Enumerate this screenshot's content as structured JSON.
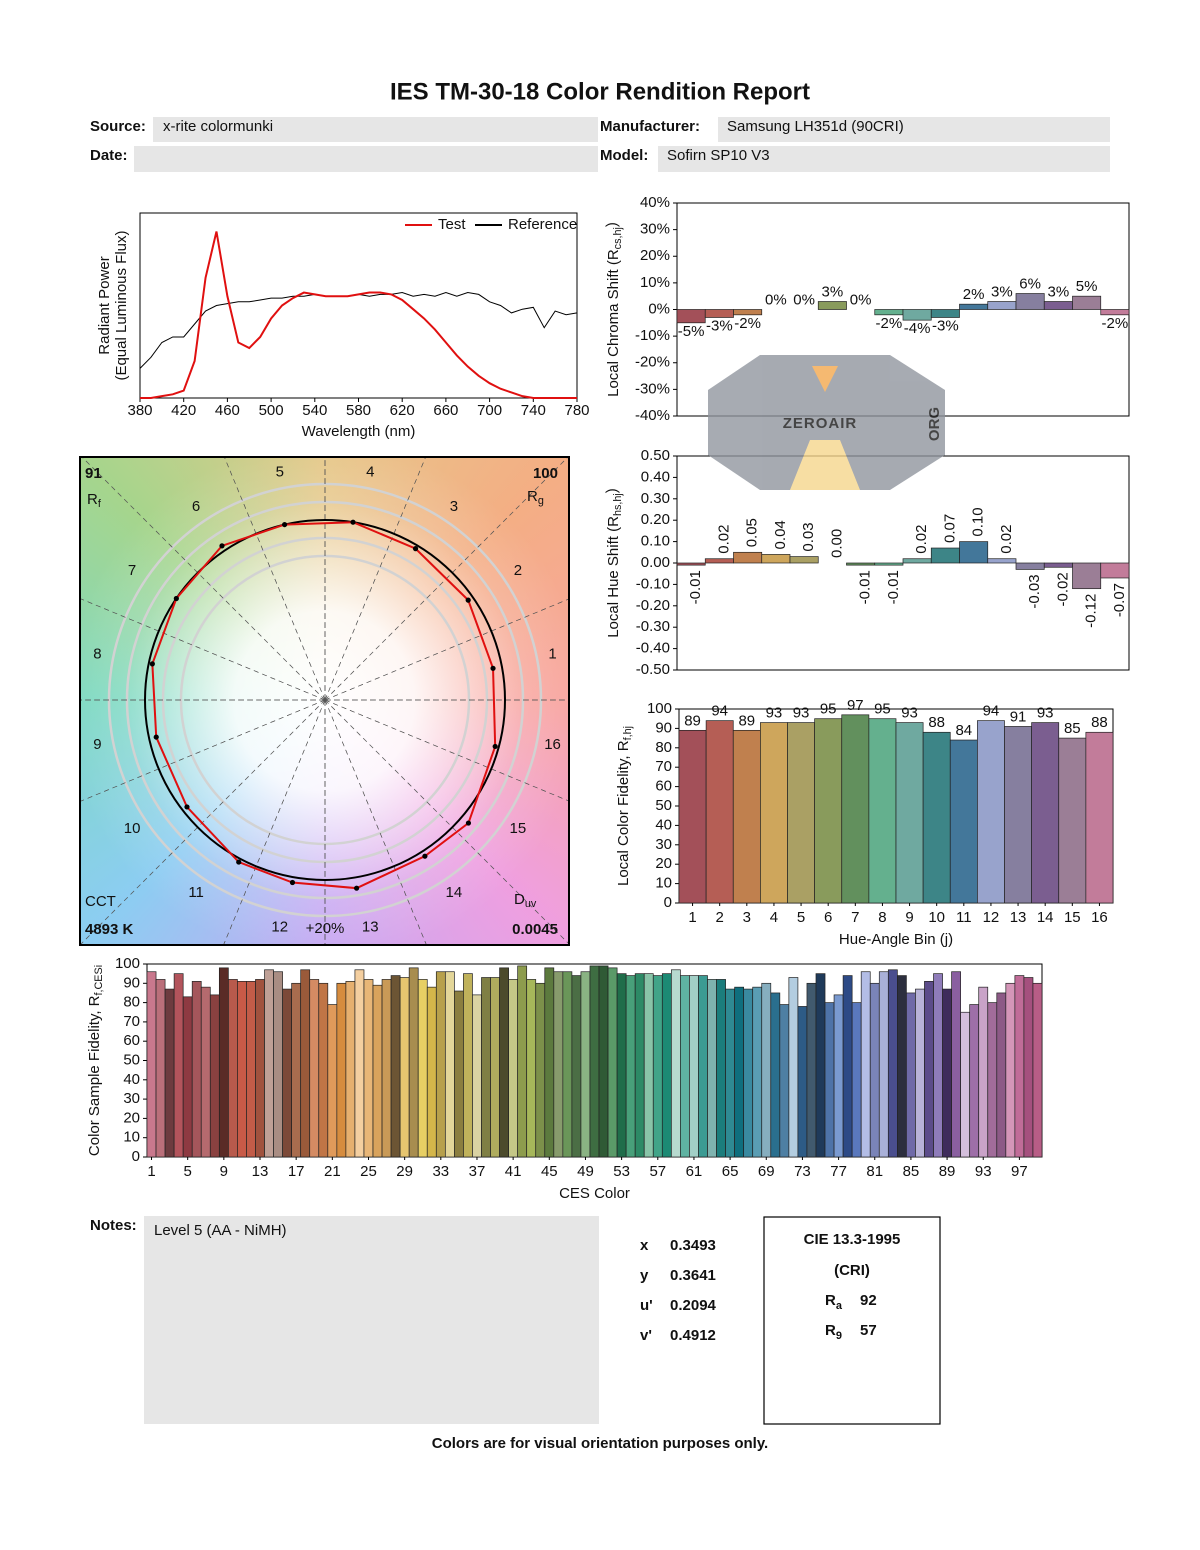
{
  "title": "IES TM-30-18 Color Rendition Report",
  "fields": {
    "source_label": "Source:",
    "source": "x-rite colormunki",
    "manufacturer_label": "Manufacturer:",
    "manufacturer": "Samsung LH351d (90CRI)",
    "date_label": "Date:",
    "model_label": "Model:",
    "model": "Sofirn SP10 V3"
  },
  "chart_data": [
    {
      "type": "line",
      "x": [
        380,
        390,
        400,
        410,
        420,
        430,
        440,
        450,
        460,
        470,
        480,
        490,
        500,
        510,
        520,
        530,
        540,
        550,
        560,
        570,
        580,
        590,
        600,
        610,
        620,
        630,
        640,
        650,
        660,
        670,
        680,
        690,
        700,
        710,
        720,
        730,
        740,
        750,
        760,
        770,
        780
      ],
      "series": [
        {
          "name": "Test",
          "color": "#e01010",
          "values": [
            0,
            0,
            0.01,
            0.02,
            0.04,
            0.2,
            0.65,
            0.9,
            0.55,
            0.3,
            0.27,
            0.33,
            0.43,
            0.5,
            0.54,
            0.57,
            0.56,
            0.55,
            0.55,
            0.55,
            0.56,
            0.57,
            0.57,
            0.56,
            0.53,
            0.48,
            0.43,
            0.37,
            0.3,
            0.23,
            0.17,
            0.12,
            0.08,
            0.05,
            0.03,
            0.01,
            0,
            0,
            0,
            0,
            0
          ]
        },
        {
          "name": "Reference",
          "color": "#000000",
          "values": [
            0.16,
            0.22,
            0.3,
            0.33,
            0.33,
            0.4,
            0.47,
            0.5,
            0.51,
            0.52,
            0.52,
            0.53,
            0.54,
            0.54,
            0.55,
            0.55,
            0.56,
            0.55,
            0.55,
            0.55,
            0.56,
            0.55,
            0.56,
            0.56,
            0.57,
            0.55,
            0.56,
            0.55,
            0.57,
            0.55,
            0.57,
            0.56,
            0.52,
            0.5,
            0.46,
            0.48,
            0.49,
            0.38,
            0.47,
            0.45,
            0.46
          ]
        }
      ],
      "xlim": [
        380,
        780
      ],
      "xticks": [
        380,
        420,
        460,
        500,
        540,
        580,
        620,
        660,
        700,
        740,
        780
      ],
      "ylim": [
        0,
        1
      ],
      "xlabel": "Wavelength (nm)",
      "ylabel": "Radiant Power",
      "ylabel_sub": "(Equal Luminous Flux)",
      "legend": "upper right"
    },
    {
      "type": "bar",
      "values": [
        -5,
        -3,
        -2,
        0,
        0,
        3,
        0,
        -2,
        -4,
        -3,
        2,
        3,
        6,
        3,
        5,
        -2
      ],
      "value_labels": [
        "-5%",
        "-3%",
        "-2%",
        "0%",
        "0%",
        "3%",
        "0%",
        "-2%",
        "-4%",
        "-3%",
        "2%",
        "3%",
        "6%",
        "3%",
        "5%",
        "-2%"
      ],
      "colors": [
        "#a35059",
        "#b55e55",
        "#c0804e",
        "#cea65c",
        "#aaa064",
        "#899b5c",
        "#62905d",
        "#64b08e",
        "#6fa9a0",
        "#3d8587",
        "#43779a",
        "#98a3cc",
        "#867f9f",
        "#7b5e90",
        "#9b7e96",
        "#c27c9a"
      ],
      "ylim": [
        -40,
        40
      ],
      "yticks": [
        {
          "value": -40,
          "label": "-40%"
        },
        {
          "value": -30,
          "label": "-30%"
        },
        {
          "value": -20,
          "label": "-20%"
        },
        {
          "value": -10,
          "label": "-10%"
        },
        {
          "value": 0,
          "label": "0%"
        },
        {
          "value": 10,
          "label": "10%"
        },
        {
          "value": 20,
          "label": "20%"
        },
        {
          "value": 30,
          "label": "30%"
        },
        {
          "value": 40,
          "label": "40%"
        }
      ],
      "ylabel": "Local Chroma Shift (R",
      "ylabel_sub": "cs,hj",
      "ylabel_end": ")"
    },
    {
      "type": "bar",
      "values": [
        -0.01,
        0.02,
        0.05,
        0.04,
        0.03,
        0.0,
        -0.01,
        -0.01,
        0.02,
        0.07,
        0.1,
        0.02,
        -0.03,
        -0.02,
        -0.12,
        -0.07
      ],
      "value_labels": [
        "-0.01",
        "0.02",
        "0.05",
        "0.04",
        "0.03",
        "0.00",
        "-0.01",
        "-0.01",
        "0.02",
        "0.07",
        "0.10",
        "0.02",
        "-0.03",
        "-0.02",
        "-0.12",
        "-0.07"
      ],
      "colors": [
        "#a35059",
        "#b55e55",
        "#c0804e",
        "#cea65c",
        "#aaa064",
        "#899b5c",
        "#62905d",
        "#64b08e",
        "#6fa9a0",
        "#3d8587",
        "#43779a",
        "#98a3cc",
        "#867f9f",
        "#7b5e90",
        "#9b7e96",
        "#c27c9a"
      ],
      "ylim": [
        -0.5,
        0.5
      ],
      "yticks": [
        {
          "value": -0.5,
          "label": "-0.50"
        },
        {
          "value": -0.4,
          "label": "-0.40"
        },
        {
          "value": -0.3,
          "label": "-0.30"
        },
        {
          "value": -0.2,
          "label": "-0.20"
        },
        {
          "value": -0.1,
          "label": "-0.10"
        },
        {
          "value": 0,
          "label": "0.00"
        },
        {
          "value": 0.1,
          "label": "0.10"
        },
        {
          "value": 0.2,
          "label": "0.20"
        },
        {
          "value": 0.3,
          "label": "0.30"
        },
        {
          "value": 0.4,
          "label": "0.40"
        },
        {
          "value": 0.5,
          "label": "0.50"
        }
      ],
      "ylabel": "Local Hue Shift (R",
      "ylabel_sub": "hs,hj",
      "ylabel_end": ")"
    },
    {
      "type": "bar",
      "categories": [
        1,
        2,
        3,
        4,
        5,
        6,
        7,
        8,
        9,
        10,
        11,
        12,
        13,
        14,
        15,
        16
      ],
      "values": [
        89,
        94,
        89,
        93,
        93,
        95,
        97,
        95,
        93,
        88,
        84,
        94,
        91,
        93,
        85,
        88
      ],
      "colors": [
        "#a35059",
        "#b55e55",
        "#c0804e",
        "#cea65c",
        "#aaa064",
        "#899b5c",
        "#62905d",
        "#64b08e",
        "#6fa9a0",
        "#3d8587",
        "#43779a",
        "#98a3cc",
        "#867f9f",
        "#7b5e90",
        "#9b7e96",
        "#c27c9a"
      ],
      "ylim": [
        0,
        100
      ],
      "yticks": [
        0,
        10,
        20,
        30,
        40,
        50,
        60,
        70,
        80,
        90,
        100
      ],
      "xlabel": "Hue-Angle Bin (j)",
      "ylabel": "Local Color Fidelity, R",
      "ylabel_sub": "f,hj"
    },
    {
      "type": "vector",
      "categories": [
        1,
        2,
        3,
        4,
        5,
        6,
        7,
        8,
        9,
        10,
        11,
        12,
        13,
        14,
        15,
        16
      ],
      "rf": 91,
      "rf_symbol": "R",
      "rf_sub": "f",
      "rg": 100,
      "rg_symbol": "R",
      "rg_sub": "g",
      "cct_label": "CCT",
      "cct": "4893 K",
      "duv_symbol": "D",
      "duv_sub": "uv",
      "duv": 0.0045,
      "ring_label": "+20%",
      "reference_color": "#000000",
      "test_color": "#e01010"
    },
    {
      "type": "bar",
      "categories": [
        1,
        null,
        null,
        null,
        5,
        null,
        null,
        null,
        9,
        null,
        null,
        null,
        13,
        null,
        null,
        null,
        17,
        null,
        null,
        null,
        21,
        null,
        null,
        null,
        25,
        null,
        null,
        null,
        29,
        null,
        null,
        null,
        33,
        null,
        null,
        null,
        37,
        null,
        null,
        null,
        41,
        null,
        null,
        null,
        45,
        null,
        null,
        null,
        49,
        null,
        null,
        null,
        53,
        null,
        null,
        null,
        57,
        null,
        null,
        null,
        61,
        null,
        null,
        null,
        65,
        null,
        null,
        null,
        69,
        null,
        null,
        null,
        73,
        null,
        null,
        null,
        77,
        null,
        null,
        null,
        81,
        null,
        null,
        null,
        85,
        null,
        null,
        null,
        89,
        null,
        null,
        null,
        93,
        null,
        null,
        null,
        97,
        null,
        null
      ],
      "values": [
        96,
        92,
        87,
        95,
        83,
        91,
        88,
        84,
        98,
        92,
        91,
        91,
        92,
        97,
        96,
        87,
        90,
        97,
        92,
        90,
        79,
        90,
        91,
        97,
        92,
        89,
        92,
        94,
        93,
        98,
        92,
        88,
        96,
        96,
        86,
        95,
        84,
        93,
        93,
        98,
        92,
        99,
        92,
        90,
        98,
        96,
        96,
        94,
        96,
        99,
        99,
        98,
        95,
        94,
        95,
        95,
        94,
        95,
        97,
        94,
        94,
        94,
        92,
        92,
        87,
        88,
        87,
        88,
        90,
        85,
        79,
        93,
        78,
        90,
        95,
        80,
        84,
        94,
        80,
        96,
        90,
        96,
        97,
        94,
        85,
        87,
        91,
        95,
        87,
        96,
        75,
        79,
        88,
        80,
        85,
        90,
        94,
        93,
        90
      ],
      "colors": [
        "#c9788d",
        "#ba6f7a",
        "#6d3b3f",
        "#b3545c",
        "#8e3a42",
        "#a5565b",
        "#b56a6e",
        "#8a4140",
        "#5a2b26",
        "#b85a4c",
        "#c85a47",
        "#c25c48",
        "#a0523e",
        "#bfa096",
        "#a98d83",
        "#7c4938",
        "#a86c4e",
        "#9a5a3a",
        "#d48b63",
        "#c07546",
        "#e09a5a",
        "#d68c3e",
        "#e6b06f",
        "#f4cfa0",
        "#e8b677",
        "#d9a35c",
        "#c99a57",
        "#6c5534",
        "#e6c56f",
        "#a88d4f",
        "#e7cf64",
        "#d4b64a",
        "#b7a04c",
        "#e3d699",
        "#8b7e3f",
        "#c0b25b",
        "#dad3a3",
        "#7f7f44",
        "#afac5e",
        "#4c4b2c",
        "#c4c787",
        "#8d9c4d",
        "#a6b75a",
        "#7c904a",
        "#5c7a3e",
        "#879b6c",
        "#6a9659",
        "#4b6e45",
        "#8ab383",
        "#3e6d42",
        "#2f5a35",
        "#5a9a68",
        "#1f6d4a",
        "#48a07a",
        "#2d8a66",
        "#89c4a8",
        "#41a488",
        "#1c8a74",
        "#b7dacf",
        "#5fb3a2",
        "#a2cfc6",
        "#3c9b93",
        "#7fb3af",
        "#1b7d7c",
        "#2f8a93",
        "#0f6f7e",
        "#3a8aa0",
        "#5a9db3",
        "#86aebf",
        "#2a6f8e",
        "#4e7fa3",
        "#b3cde0",
        "#2d5b86",
        "#415a6e",
        "#1f3a5a",
        "#4e73a8",
        "#7a9ad0",
        "#2d4a86",
        "#5a78bd",
        "#b3bde6",
        "#7a84b8",
        "#a9b0d8",
        "#4a4e8e",
        "#2c2e3e",
        "#6f6aa8",
        "#b8b3d8",
        "#5c4c8a",
        "#8f7cba",
        "#3f2c5c",
        "#8a5fa0",
        "#d4bfdc",
        "#9e6fa8",
        "#c9a3c8",
        "#a16c9a",
        "#8c5a86",
        "#d496b8",
        "#c06c98",
        "#a5507e",
        "#b85d86"
      ],
      "ylim": [
        0,
        100
      ],
      "yticks": [
        0,
        10,
        20,
        30,
        40,
        50,
        60,
        70,
        80,
        90,
        100
      ],
      "xlabel": "CES Color",
      "ylabel": "Color Sample Fidelity, R",
      "ylabel_sub": "f,CESi"
    }
  ],
  "notes_label": "Notes:",
  "notes": "Level 5 (AA - NiMH)",
  "chromaticity": [
    {
      "label": "x",
      "value": 0.3493
    },
    {
      "label": "y",
      "value": 0.3641
    },
    {
      "label": "u'",
      "value": 0.2094
    },
    {
      "label": "v'",
      "value": 0.4912
    }
  ],
  "cri": {
    "title": "CIE 13.3-1995",
    "subtitle": "(CRI)",
    "items": [
      {
        "symbol": "R",
        "sub": "a",
        "value": 92
      },
      {
        "symbol": "R",
        "sub": "9",
        "value": 57
      }
    ]
  },
  "watermark": {
    "text": "ZEROAIR",
    "sub": "ORG"
  },
  "footer": "Colors are for visual orientation purposes only."
}
